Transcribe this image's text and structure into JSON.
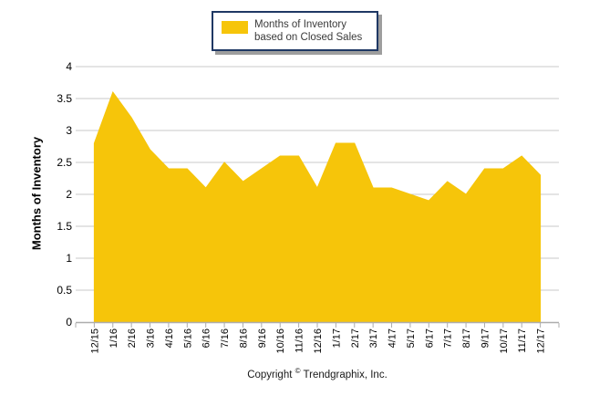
{
  "footer": {
    "text_prefix": "Copyright ",
    "text_symbol": "©",
    "text_suffix": " Trendgraphix, Inc."
  },
  "chart_data": {
    "type": "area",
    "title": "",
    "xlabel": "",
    "ylabel": "Months of Inventory",
    "categories": [
      "12/15",
      "1/16",
      "2/16",
      "3/16",
      "4/16",
      "5/16",
      "6/16",
      "7/16",
      "8/16",
      "9/16",
      "10/16",
      "11/16",
      "12/16",
      "1/17",
      "2/17",
      "3/17",
      "4/17",
      "5/17",
      "6/17",
      "7/17",
      "8/17",
      "9/17",
      "10/17",
      "11/17",
      "12/17"
    ],
    "series": [
      {
        "name": "Months of Inventory based on Closed Sales",
        "values": [
          2.8,
          3.6,
          3.2,
          2.7,
          2.4,
          2.4,
          2.1,
          2.5,
          2.2,
          2.4,
          2.6,
          2.6,
          2.1,
          2.8,
          2.8,
          2.1,
          2.1,
          2.0,
          1.9,
          2.2,
          2.0,
          2.4,
          2.4,
          2.6,
          2.3
        ]
      }
    ],
    "ylim": [
      0,
      4
    ],
    "ytick_step": 0.5,
    "grid": true,
    "legend_position": "top-center",
    "colors": {
      "area_fill": "#F6C50A",
      "gridline": "#C9C9C9",
      "axis_line": "#ADADAD",
      "tick": "#ADADAD",
      "axis_text": "#000000",
      "legend_border": "#1F3864",
      "legend_shadow": "#9E9E9E"
    }
  }
}
